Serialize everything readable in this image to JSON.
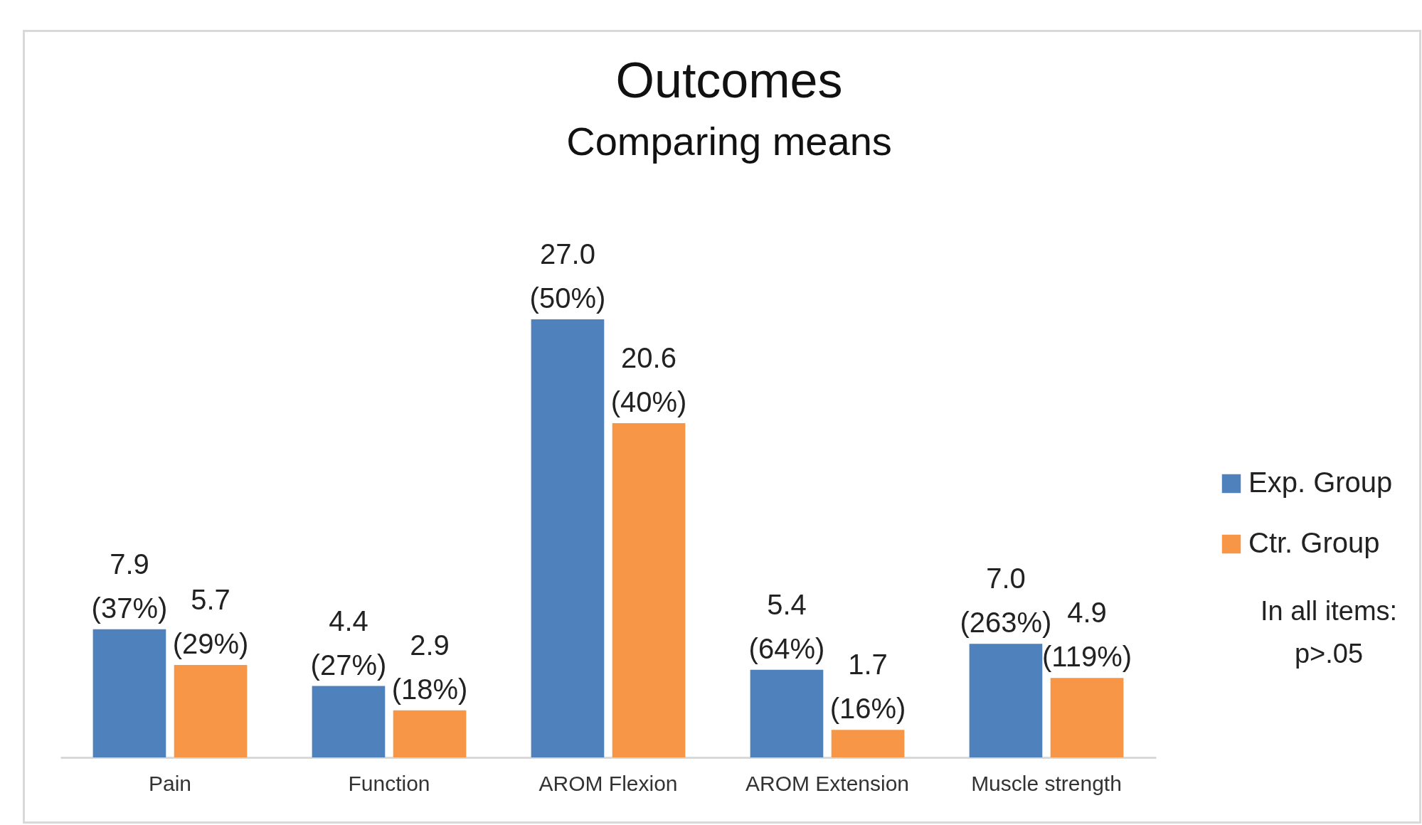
{
  "chart_data": {
    "type": "bar",
    "title": "Outcomes",
    "subtitle": "Comparing means",
    "categories": [
      "Pain",
      "Function",
      "AROM Flexion",
      "AROM Extension",
      "Muscle strength"
    ],
    "series": [
      {
        "name": "Exp. Group",
        "color": "#4f81bd",
        "values": [
          7.9,
          4.4,
          27.0,
          5.4,
          7.0
        ],
        "value_labels": [
          "7.9 (37%)",
          "4.4 (27%)",
          "27.0 (50%)",
          "5.4 (64%)",
          "7.0 (263%)"
        ]
      },
      {
        "name": "Ctr. Group",
        "color": "#f79646",
        "values": [
          5.7,
          2.9,
          20.6,
          1.7,
          4.9
        ],
        "value_labels": [
          "5.7 (29%)",
          "2.9 (18%)",
          "20.6 (40%)",
          "1.7 (16%)",
          "4.9 (119%)"
        ]
      }
    ],
    "legend": "right",
    "grid": false,
    "annotations": [
      "In all items: p>.05"
    ]
  }
}
